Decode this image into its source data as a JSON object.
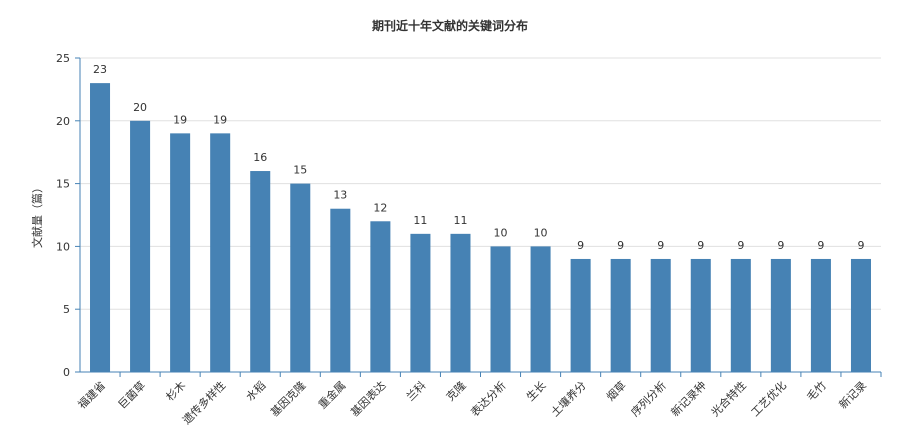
{
  "chart_data": {
    "type": "bar",
    "title": "期刊近十年文献的关键词分布",
    "xlabel": "",
    "ylabel": "文献量（篇）",
    "ylim": [
      0,
      25
    ],
    "yticks": [
      0,
      5,
      10,
      15,
      20,
      25
    ],
    "grid": true,
    "legend": "none",
    "bar_color": "#4682b4",
    "categories": [
      "福建省",
      "巨菌草",
      "杉木",
      "遗传多样性",
      "水稻",
      "基因克隆",
      "重金属",
      "基因表达",
      "兰科",
      "克隆",
      "表达分析",
      "生长",
      "土壤养分",
      "烟草",
      "序列分析",
      "新记录种",
      "光合特性",
      "工艺优化",
      "毛竹",
      "新记录"
    ],
    "values": [
      23,
      20,
      19,
      19,
      16,
      15,
      13,
      12,
      11,
      11,
      10,
      10,
      9,
      9,
      9,
      9,
      9,
      9,
      9,
      9
    ]
  }
}
